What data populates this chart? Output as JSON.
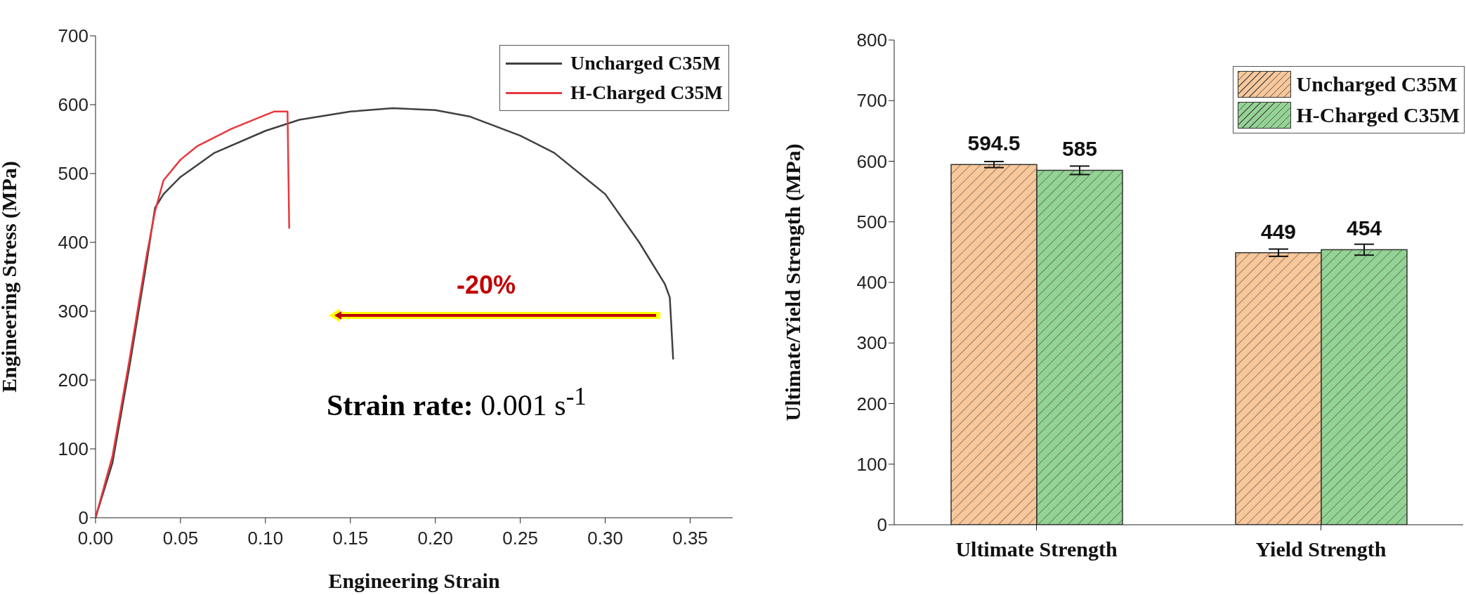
{
  "chart_data": [
    {
      "type": "line",
      "xlabel": "Engineering Strain",
      "ylabel": "Engineering Stress (MPa)",
      "xlim": [
        0,
        0.375
      ],
      "xticks": [
        {
          "value": 0,
          "label": "0.00"
        },
        {
          "value": 0.05,
          "label": "0.05"
        },
        {
          "value": 0.1,
          "label": "0.10"
        },
        {
          "value": 0.15,
          "label": "0.15"
        },
        {
          "value": 0.2,
          "label": "0.20"
        },
        {
          "value": 0.25,
          "label": "0.25"
        },
        {
          "value": 0.3,
          "label": "0.30"
        },
        {
          "value": 0.35,
          "label": "0.35"
        }
      ],
      "ylim": [
        0,
        700
      ],
      "yticks": [
        0,
        100,
        200,
        300,
        400,
        500,
        600,
        700
      ],
      "series": [
        {
          "name": "Uncharged C35M",
          "color": "#404040",
          "x": [
            0,
            0.01,
            0.02,
            0.03,
            0.035,
            0.04,
            0.05,
            0.07,
            0.1,
            0.12,
            0.15,
            0.175,
            0.2,
            0.22,
            0.25,
            0.27,
            0.3,
            0.32,
            0.335,
            0.338,
            0.34
          ],
          "values": [
            0,
            80,
            220,
            370,
            450,
            470,
            495,
            530,
            562,
            578,
            590,
            595,
            592,
            583,
            555,
            530,
            470,
            400,
            340,
            320,
            230
          ]
        },
        {
          "name": "H-Charged C35M",
          "color": "#e8383d",
          "x": [
            0,
            0.01,
            0.02,
            0.03,
            0.035,
            0.04,
            0.05,
            0.06,
            0.08,
            0.1,
            0.105,
            0.113,
            0.114
          ],
          "values": [
            0,
            90,
            230,
            380,
            445,
            490,
            520,
            540,
            565,
            585,
            590,
            590,
            420
          ]
        }
      ],
      "annotations": [
        "-20%",
        "Strain rate: 0.001 s$^{-1}$"
      ],
      "legend": "top right",
      "marker": "none",
      "line_style": "solid",
      "grid": false
    },
    {
      "type": "bar",
      "ylabel": "Ultimate/Yield Strength (MPa)",
      "categories": [
        "Ultimate Strength",
        "Yield Strength"
      ],
      "ylim": [
        0,
        800
      ],
      "yticks": [
        0,
        100,
        200,
        300,
        400,
        500,
        600,
        700,
        800
      ],
      "series": [
        {
          "name": "Uncharged C35M",
          "color": "#f8c79a",
          "values": [
            594.5,
            449
          ],
          "errors": [
            5,
            6
          ]
        },
        {
          "name": "H-Charged C35M",
          "color": "#93d394",
          "values": [
            585,
            454
          ],
          "errors": [
            7,
            9
          ]
        }
      ],
      "data_labels": true,
      "legend": "top right",
      "grid": false
    }
  ]
}
